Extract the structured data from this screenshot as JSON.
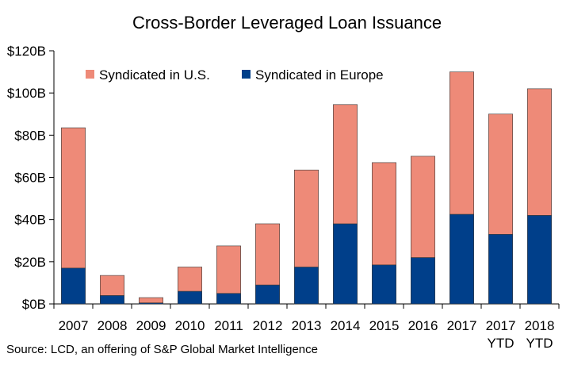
{
  "chart_data": {
    "type": "bar",
    "stacked": true,
    "title": "Cross-Border Leveraged Loan Issuance",
    "categories": [
      [
        "2007"
      ],
      [
        "2008"
      ],
      [
        "2009"
      ],
      [
        "2010"
      ],
      [
        "2011"
      ],
      [
        "2012"
      ],
      [
        "2013"
      ],
      [
        "2014"
      ],
      [
        "2015"
      ],
      [
        "2016"
      ],
      [
        "2017"
      ],
      [
        "2017",
        "YTD"
      ],
      [
        "2018",
        "YTD"
      ]
    ],
    "series": [
      {
        "name": "Syndicated in Europe",
        "color": "#003f8a",
        "values": [
          17,
          4,
          0.5,
          6,
          5,
          9,
          17.5,
          38,
          18.5,
          22,
          42.5,
          33,
          42
        ]
      },
      {
        "name": "Syndicated in U.S.",
        "color": "#ee8a78",
        "values": [
          66.5,
          9.5,
          2.5,
          11.5,
          22.5,
          29,
          46,
          56.5,
          48.5,
          48,
          67.5,
          57,
          60
        ]
      }
    ],
    "legend_order": [
      1,
      0
    ],
    "legend_position": "top-left",
    "y_ticks": [
      "$0B",
      "$20B",
      "$40B",
      "$60B",
      "$80B",
      "$100B",
      "$120B"
    ],
    "ylim": [
      0,
      120
    ],
    "grid": false
  },
  "source": "Source: LCD, an offering of S&P Global Market Intelligence"
}
